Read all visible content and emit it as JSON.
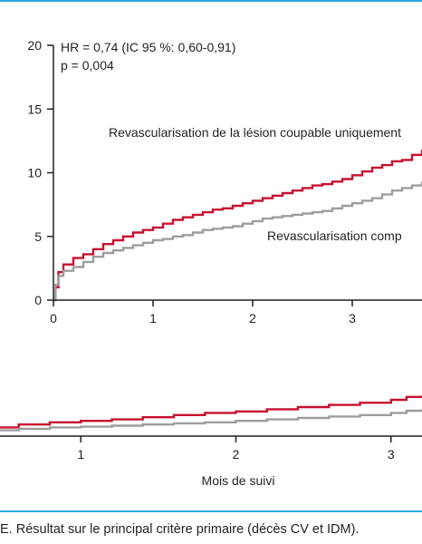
{
  "caption": "E. Résultat sur le principal critère primaire (décès CV et IDM).",
  "chart_data": [
    {
      "type": "line",
      "title": "",
      "xlabel": "",
      "ylabel": "",
      "xlim": [
        0,
        3.7
      ],
      "ylim": [
        0,
        20
      ],
      "x_ticks": [
        0,
        1,
        2,
        3
      ],
      "x_tick_labels": [
        "0",
        "1",
        "2",
        "3"
      ],
      "y_ticks": [
        0,
        5,
        10,
        15,
        20
      ],
      "y_tick_labels": [
        "0",
        "5",
        "10",
        "15",
        "20"
      ],
      "grid": false,
      "annotations": [
        "HR = 0,74 (IC 95 %: 0,60-0,91)",
        "p = 0,004"
      ],
      "series": [
        {
          "name": "Revascularisation de la lésion coupable uniquement",
          "color": "#c8102e",
          "x": [
            0,
            0.02,
            0.05,
            0.1,
            0.2,
            0.3,
            0.4,
            0.5,
            0.6,
            0.7,
            0.8,
            0.9,
            1.0,
            1.1,
            1.2,
            1.3,
            1.4,
            1.5,
            1.6,
            1.7,
            1.8,
            1.9,
            2.0,
            2.1,
            2.2,
            2.3,
            2.4,
            2.5,
            2.6,
            2.7,
            2.8,
            2.9,
            3.0,
            3.1,
            3.2,
            3.3,
            3.4,
            3.5,
            3.6,
            3.7
          ],
          "y": [
            0,
            1.0,
            2.2,
            2.8,
            3.3,
            3.6,
            4.0,
            4.4,
            4.7,
            5.0,
            5.3,
            5.5,
            5.7,
            6.0,
            6.3,
            6.5,
            6.7,
            6.9,
            7.1,
            7.2,
            7.4,
            7.6,
            7.8,
            8.0,
            8.2,
            8.4,
            8.6,
            8.8,
            9.0,
            9.1,
            9.3,
            9.5,
            9.8,
            10.1,
            10.4,
            10.6,
            10.9,
            11.0,
            11.4,
            11.8
          ]
        },
        {
          "name": "Revascularisation comp",
          "color": "#9d9d9d",
          "x": [
            0,
            0.02,
            0.05,
            0.1,
            0.2,
            0.3,
            0.4,
            0.5,
            0.6,
            0.7,
            0.8,
            0.9,
            1.0,
            1.1,
            1.2,
            1.3,
            1.4,
            1.5,
            1.6,
            1.7,
            1.8,
            1.9,
            2.0,
            2.1,
            2.2,
            2.3,
            2.4,
            2.5,
            2.6,
            2.7,
            2.8,
            2.9,
            3.0,
            3.1,
            3.2,
            3.3,
            3.4,
            3.5,
            3.6,
            3.7
          ],
          "y": [
            0,
            1.2,
            1.9,
            2.3,
            2.6,
            3.0,
            3.4,
            3.7,
            3.9,
            4.1,
            4.3,
            4.5,
            4.7,
            4.8,
            5.0,
            5.1,
            5.3,
            5.5,
            5.6,
            5.7,
            5.8,
            6.0,
            6.2,
            6.4,
            6.5,
            6.6,
            6.7,
            6.8,
            6.9,
            7.0,
            7.2,
            7.4,
            7.6,
            7.8,
            8.0,
            8.3,
            8.6,
            8.8,
            9.0,
            9.3
          ]
        }
      ]
    },
    {
      "type": "line",
      "title": "",
      "xlabel": "Mois de suivi",
      "ylabel": "",
      "xlim": [
        0,
        3.2
      ],
      "ylim": [
        0,
        5
      ],
      "x_ticks": [
        1,
        2,
        3
      ],
      "x_tick_labels": [
        "1",
        "2",
        "3"
      ],
      "grid": false,
      "series": [
        {
          "color": "#c8102e",
          "x": [
            0.45,
            0.6,
            0.8,
            1.0,
            1.2,
            1.4,
            1.6,
            1.8,
            2.0,
            2.2,
            2.4,
            2.6,
            2.8,
            3.0,
            3.1,
            3.2
          ],
          "y": [
            0.6,
            0.8,
            0.95,
            1.05,
            1.15,
            1.3,
            1.45,
            1.6,
            1.7,
            1.85,
            2.0,
            2.15,
            2.3,
            2.5,
            2.7,
            2.8
          ]
        },
        {
          "color": "#9d9d9d",
          "x": [
            0.45,
            0.6,
            0.8,
            1.0,
            1.2,
            1.4,
            1.6,
            1.8,
            2.0,
            2.2,
            2.4,
            2.6,
            2.8,
            3.0,
            3.1,
            3.2
          ],
          "y": [
            0.4,
            0.5,
            0.6,
            0.65,
            0.72,
            0.8,
            0.88,
            0.95,
            1.05,
            1.15,
            1.25,
            1.35,
            1.45,
            1.6,
            1.75,
            1.85
          ]
        }
      ]
    }
  ]
}
